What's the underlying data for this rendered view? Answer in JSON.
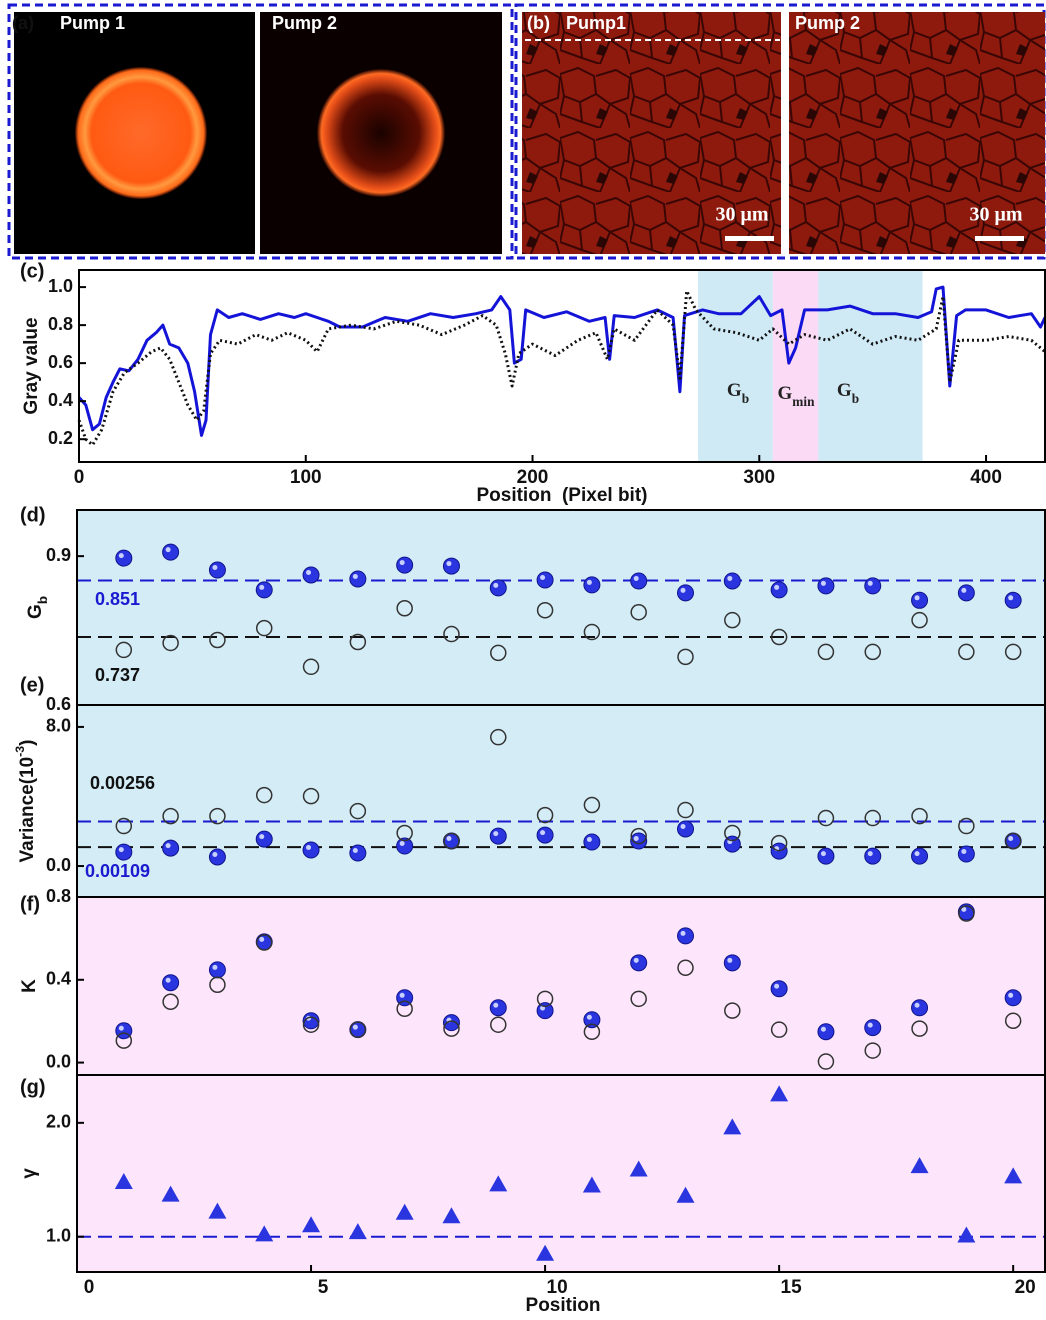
{
  "panels": {
    "a": {
      "label": "(a)",
      "images": [
        "Pump 1",
        "Pump 2"
      ]
    },
    "b": {
      "label": "(b)",
      "images": [
        "Pump1",
        "Pump 2"
      ],
      "scale_bar": "30 μm"
    }
  },
  "chart_data": [
    {
      "type": "line",
      "panel_label": "(c)",
      "ylabel": "Gray value",
      "xlabel": "Position  (Pixel bit)",
      "xlim": [
        0,
        426
      ],
      "ylim": [
        0.08,
        1.09
      ],
      "xticks": [
        0,
        100,
        200,
        300,
        400
      ],
      "yticks": [
        0.2,
        0.4,
        0.6,
        0.8,
        {
          "value": 1,
          "label": "1.0"
        }
      ],
      "regions": [
        {
          "from": 273,
          "to": 306,
          "color": "#cfeaf5"
        },
        {
          "from": 306,
          "to": 326,
          "color": "#fbdaf6"
        },
        {
          "from": 326,
          "to": 372,
          "color": "#cfeaf5"
        }
      ],
      "annotations": [
        {
          "main": "G",
          "sub": "b"
        },
        {
          "main": "G",
          "sub": "min"
        },
        {
          "main": "G",
          "sub": "b"
        }
      ],
      "series": [
        {
          "color": "#1414d8",
          "dash": "solid",
          "x": [
            0,
            3,
            6,
            9,
            12,
            15,
            18,
            22,
            26,
            30,
            34,
            37,
            40,
            44,
            48,
            51,
            54,
            56,
            58,
            61,
            66,
            72,
            80,
            88,
            95,
            100,
            105,
            110,
            115,
            125,
            135,
            145,
            155,
            165,
            175,
            182,
            186,
            190,
            192,
            195,
            197,
            205,
            215,
            225,
            232,
            234,
            236,
            245,
            255,
            262,
            265,
            267,
            275,
            282,
            292,
            300,
            305,
            310,
            313,
            316,
            320,
            330,
            340,
            350,
            360,
            370,
            376,
            378,
            381,
            384,
            387,
            391,
            400,
            410,
            420,
            424,
            426
          ],
          "values": [
            0.42,
            0.38,
            0.25,
            0.28,
            0.42,
            0.5,
            0.57,
            0.56,
            0.62,
            0.72,
            0.76,
            0.8,
            0.7,
            0.68,
            0.6,
            0.45,
            0.22,
            0.3,
            0.75,
            0.88,
            0.84,
            0.86,
            0.83,
            0.86,
            0.84,
            0.86,
            0.84,
            0.82,
            0.79,
            0.79,
            0.84,
            0.82,
            0.86,
            0.84,
            0.86,
            0.88,
            0.95,
            0.88,
            0.6,
            0.62,
            0.88,
            0.84,
            0.87,
            0.82,
            0.84,
            0.62,
            0.85,
            0.84,
            0.88,
            0.84,
            0.45,
            0.85,
            0.88,
            0.86,
            0.86,
            0.95,
            0.85,
            0.88,
            0.6,
            0.68,
            0.88,
            0.88,
            0.9,
            0.86,
            0.86,
            0.84,
            0.87,
            0.99,
            1.0,
            0.48,
            0.85,
            0.88,
            0.88,
            0.84,
            0.86,
            0.79,
            0.84
          ]
        },
        {
          "color": "#111111",
          "dash": "dotted",
          "x": [
            0,
            3,
            6,
            10,
            15,
            20,
            26,
            32,
            36,
            40,
            44,
            48,
            52,
            55,
            58,
            62,
            70,
            78,
            85,
            92,
            100,
            105,
            110,
            120,
            130,
            140,
            150,
            160,
            170,
            178,
            184,
            188,
            191,
            194,
            200,
            210,
            220,
            228,
            233,
            236,
            245,
            255,
            262,
            265,
            268,
            272,
            280,
            290,
            300,
            306,
            313,
            320,
            330,
            340,
            350,
            360,
            370,
            378,
            381,
            384,
            388,
            400,
            410,
            420,
            426
          ],
          "values": [
            0.3,
            0.2,
            0.17,
            0.25,
            0.45,
            0.55,
            0.6,
            0.66,
            0.68,
            0.62,
            0.5,
            0.38,
            0.3,
            0.35,
            0.65,
            0.72,
            0.7,
            0.75,
            0.72,
            0.76,
            0.72,
            0.66,
            0.78,
            0.8,
            0.78,
            0.82,
            0.8,
            0.75,
            0.8,
            0.85,
            0.8,
            0.65,
            0.48,
            0.65,
            0.7,
            0.64,
            0.72,
            0.76,
            0.62,
            0.78,
            0.72,
            0.88,
            0.8,
            0.52,
            0.98,
            0.88,
            0.78,
            0.76,
            0.72,
            0.78,
            0.7,
            0.75,
            0.72,
            0.78,
            0.7,
            0.74,
            0.72,
            0.78,
            0.95,
            0.5,
            0.72,
            0.72,
            0.74,
            0.72,
            0.66
          ]
        }
      ]
    },
    {
      "type": "scatter",
      "panel_label": "(d)",
      "ylabel": {
        "main": "G",
        "sub": "b"
      },
      "background": "#d3ecf6",
      "x": [
        1,
        2,
        3,
        4,
        5,
        6,
        7,
        8,
        9,
        10,
        11,
        12,
        13,
        14,
        15,
        16,
        17,
        18,
        19,
        20
      ],
      "xlim": [
        0,
        20.68
      ],
      "ylim": [
        0.6,
        0.993
      ],
      "yticks": [
        0.6,
        0.9
      ],
      "ref_lines": [
        {
          "value": 0.851,
          "color": "#1a1ad0"
        },
        {
          "value": 0.737,
          "color": "#111111"
        }
      ],
      "series": [
        {
          "color": "#2a35e0",
          "marker": "filled",
          "values": [
            0.896,
            0.908,
            0.872,
            0.832,
            0.862,
            0.854,
            0.882,
            0.88,
            0.836,
            0.852,
            0.842,
            0.85,
            0.826,
            0.85,
            0.832,
            0.84,
            0.84,
            0.811,
            0.826,
            0.811
          ]
        },
        {
          "color": "#333333",
          "marker": "open",
          "values": [
            0.711,
            0.725,
            0.731,
            0.755,
            0.677,
            0.727,
            0.795,
            0.743,
            0.705,
            0.791,
            0.747,
            0.787,
            0.697,
            0.771,
            0.737,
            0.707,
            0.707,
            0.771,
            0.707,
            0.707
          ]
        }
      ]
    },
    {
      "type": "scatter",
      "panel_label": "(e)",
      "ylabel": {
        "main": "Variance(10",
        "sup": "-3",
        "tail": ")"
      },
      "background": "#d3ecf6",
      "x": [
        1,
        2,
        3,
        4,
        5,
        6,
        7,
        8,
        9,
        10,
        11,
        12,
        13,
        14,
        15,
        16,
        17,
        18,
        19,
        20
      ],
      "xlim": [
        0,
        20.68
      ],
      "ylim": [
        -1.78,
        9.26
      ],
      "yticks": [
        {
          "value": 0,
          "label": "0.0"
        },
        {
          "value": 8,
          "label": "8.0"
        }
      ],
      "ref_lines": [
        {
          "value": 2.56,
          "label": "0.00256",
          "color": "#1a1ad0",
          "label_color": "#111111"
        },
        {
          "value": 1.09,
          "label": "0.00109",
          "color": "#111111",
          "label_color": "#1a1ad0"
        }
      ],
      "series": [
        {
          "color": "#2a35e0",
          "marker": "filled",
          "values": [
            0.8,
            1.03,
            0.52,
            1.55,
            0.92,
            0.75,
            1.15,
            1.44,
            1.72,
            1.78,
            1.38,
            1.44,
            2.13,
            1.26,
            0.86,
            0.57,
            0.57,
            0.57,
            0.69,
            1.44
          ]
        },
        {
          "color": "#333333",
          "marker": "open",
          "values": [
            2.3,
            2.87,
            2.87,
            4.08,
            4.02,
            3.16,
            1.9,
            1.44,
            7.41,
            2.93,
            3.51,
            1.72,
            3.22,
            1.9,
            1.32,
            2.76,
            2.76,
            2.87,
            2.3,
            1.44
          ]
        }
      ]
    },
    {
      "type": "scatter",
      "panel_label": "(f)",
      "ylabel": "K",
      "background": "#fde6fb",
      "x": [
        1,
        2,
        3,
        4,
        5,
        6,
        7,
        8,
        9,
        10,
        11,
        12,
        13,
        14,
        15,
        16,
        17,
        18,
        19,
        20
      ],
      "xlim": [
        0,
        20.68
      ],
      "ylim": [
        -0.06,
        0.8
      ],
      "yticks": [
        {
          "value": 0,
          "label": "0.0"
        },
        0.4,
        0.8
      ],
      "series": [
        {
          "color": "#2a35e0",
          "marker": "filled",
          "values": [
            0.154,
            0.386,
            0.448,
            0.583,
            0.202,
            0.159,
            0.313,
            0.193,
            0.265,
            0.251,
            0.207,
            0.482,
            0.612,
            0.482,
            0.357,
            0.149,
            0.169,
            0.265,
            0.728,
            0.313
          ]
        },
        {
          "color": "#333333",
          "marker": "open",
          "values": [
            0.106,
            0.294,
            0.376,
            0.58,
            0.183,
            0.159,
            0.26,
            0.164,
            0.183,
            0.308,
            0.149,
            0.308,
            0.458,
            0.251,
            0.159,
            0.005,
            0.058,
            0.164,
            0.72,
            0.202
          ]
        }
      ]
    },
    {
      "type": "scatter",
      "panel_label": "(g)",
      "ylabel": "γ",
      "xlabel": "Position",
      "background": "#fde6fb",
      "x": [
        1,
        2,
        3,
        4,
        5,
        6,
        7,
        8,
        9,
        10,
        11,
        12,
        13,
        14,
        15,
        16,
        17,
        18,
        19,
        20
      ],
      "xlim": [
        0,
        20.68
      ],
      "ylim": [
        0.69,
        2.42
      ],
      "xticks": [
        0,
        5,
        10,
        15,
        20
      ],
      "yticks": [
        {
          "value": 1,
          "label": "1.0"
        },
        {
          "value": 2,
          "label": "2.0"
        }
      ],
      "hline": {
        "value": 1,
        "color": "#1a1ad0"
      },
      "series": [
        {
          "color": "#2a35e0",
          "marker": "triangle",
          "values": [
            1.48,
            1.37,
            1.22,
            1.02,
            1.1,
            1.04,
            1.21,
            1.18,
            1.46,
            0.85,
            1.45,
            1.59,
            1.36,
            1.96,
            2.25,
            null,
            null,
            1.62,
            1.01,
            1.53
          ]
        }
      ]
    }
  ]
}
